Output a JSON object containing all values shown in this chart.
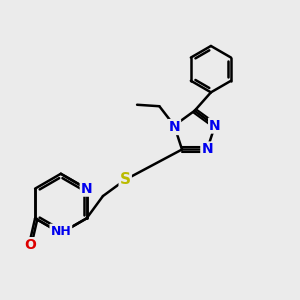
{
  "bg_color": "#ebebeb",
  "bond_color": "#000000",
  "N_color": "#0000ee",
  "O_color": "#dd0000",
  "S_color": "#bbbb00",
  "bond_width": 1.8,
  "font_size": 10,
  "fig_size": [
    3.0,
    3.0
  ],
  "dpi": 100,
  "xlim": [
    0,
    10
  ],
  "ylim": [
    0,
    10
  ]
}
